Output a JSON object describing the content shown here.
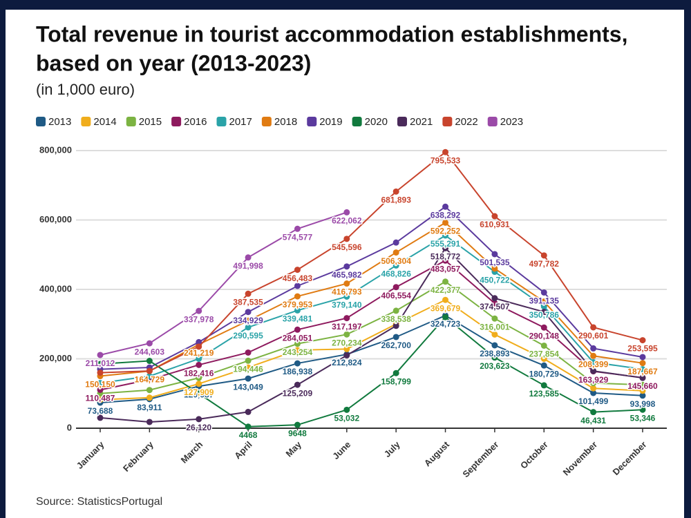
{
  "chart_data": {
    "type": "line",
    "title": "Total revenue in tourist accommodation establishments,",
    "title_line2": "based on year (2013-2023)",
    "subtitle": "(in 1,000 euro)",
    "source": "Source: StatisticsPortugal",
    "categories": [
      "January",
      "February",
      "March",
      "April",
      "May",
      "June",
      "July",
      "August",
      "September",
      "October",
      "November",
      "December"
    ],
    "ylim": [
      0,
      800000
    ],
    "yticks": [
      0,
      {
        "value": 200000,
        "label": "200,000"
      },
      {
        "value": 400000,
        "label": "400,000"
      },
      {
        "value": 600000,
        "label": "600,000"
      },
      {
        "value": 800000,
        "label": "800,000"
      }
    ],
    "grid": true,
    "legend": "top",
    "series": [
      {
        "name": "2013",
        "color": "#1f5a85",
        "values": [
          73688,
          83911,
          120987,
          143049,
          186938,
          212824,
          262700,
          324723,
          238893,
          180729,
          101499,
          93998
        ],
        "value_labels": [
          "73,688",
          "83,911",
          "120,987",
          "143,049",
          "186,938",
          "212,824",
          "262,700",
          "324,723",
          "238,893",
          "180,729",
          "101,499",
          "93,998"
        ]
      },
      {
        "name": "2014",
        "color": "#f0ad1c",
        "values": [
          82000,
          88000,
          127909,
          175000,
          225000,
          228000,
          300000,
          369679,
          270000,
          200000,
          115000,
          108000
        ],
        "value_labels": [
          null,
          null,
          "127,909",
          null,
          null,
          null,
          null,
          "369,679",
          null,
          null,
          null,
          null
        ]
      },
      {
        "name": "2015",
        "color": "#7cb342",
        "values": [
          100000,
          110000,
          145000,
          194446,
          243254,
          270234,
          338538,
          422377,
          316001,
          237854,
          130000,
          125000
        ],
        "value_labels": [
          null,
          null,
          null,
          "194,446",
          "243,254",
          "270,234",
          "338,538",
          "422,377",
          "316,001",
          "237,854",
          null,
          null
        ]
      },
      {
        "name": "2016",
        "color": "#8e1a5e",
        "values": [
          110487,
          140000,
          182416,
          218000,
          284051,
          317197,
          406554,
          483057,
          360000,
          290148,
          163929,
          145660
        ],
        "value_labels": [
          "110,487",
          null,
          "182,416",
          null,
          "284,051",
          "317,197",
          "406,554",
          "483,057",
          null,
          "290,148",
          "163,929",
          "145,660"
        ]
      },
      {
        "name": "2017",
        "color": "#2aa3a8",
        "values": [
          130000,
          150000,
          200000,
          290595,
          339481,
          379140,
          468826,
          555291,
          450722,
          350786,
          190000,
          170000
        ],
        "value_labels": [
          null,
          null,
          null,
          "290,595",
          "339,481",
          "379,140",
          "468,826",
          "555,291",
          "450,722",
          "350,786",
          null,
          null
        ]
      },
      {
        "name": "2018",
        "color": "#e07b12",
        "values": [
          150150,
          164729,
          241219,
          310000,
          379953,
          416793,
          506304,
          592252,
          460000,
          365000,
          208399,
          187667
        ],
        "value_labels": [
          "150,150",
          "164,729",
          "241,219",
          null,
          "379,953",
          "416,793",
          "506,304",
          "592,252",
          null,
          null,
          "208,399",
          "187,667"
        ]
      },
      {
        "name": "2019",
        "color": "#5b3a9e",
        "values": [
          170000,
          175000,
          248000,
          334929,
          410000,
          465982,
          535000,
          638292,
          501535,
          391135,
          230000,
          205000
        ],
        "value_labels": [
          null,
          null,
          null,
          "334,929",
          null,
          "465,982",
          null,
          "638,292",
          "501,535",
          "391,135",
          null,
          null
        ]
      },
      {
        "name": "2020",
        "color": "#117a3e",
        "values": [
          185000,
          194000,
          100000,
          4468,
          9648,
          53032,
          158799,
          320000,
          203623,
          123585,
          46431,
          53346
        ],
        "value_labels": [
          null,
          null,
          null,
          "4468",
          "9648",
          "53,032",
          "158,799",
          null,
          "203,623",
          "123,585",
          "46,431",
          "53,346"
        ]
      },
      {
        "name": "2021",
        "color": "#4a2a5a",
        "values": [
          30000,
          18000,
          26120,
          47000,
          125209,
          210000,
          295000,
          518772,
          374507,
          335000,
          165000,
          145000
        ],
        "value_labels": [
          null,
          null,
          "26,120",
          null,
          "125,209",
          null,
          null,
          "518,772",
          "374,507",
          null,
          null,
          null
        ]
      },
      {
        "name": "2022",
        "color": "#c8442d",
        "values": [
          160000,
          165000,
          235000,
          387535,
          456483,
          545596,
          681893,
          795533,
          610931,
          497782,
          290601,
          253595
        ],
        "value_labels": [
          null,
          null,
          null,
          "387,535",
          "456,483",
          "545,596",
          "681,893",
          "795,533",
          "610,931",
          "497,782",
          "290,601",
          "253,595"
        ]
      },
      {
        "name": "2023",
        "color": "#9b4aa8",
        "values": [
          211012,
          244603,
          337978,
          491998,
          574577,
          622062,
          null,
          null,
          null,
          null,
          null,
          null
        ],
        "value_labels": [
          "211,012",
          "244,603",
          "337,978",
          "491,998",
          "574,577",
          "622,062",
          null,
          null,
          null,
          null,
          null,
          null
        ]
      }
    ]
  }
}
